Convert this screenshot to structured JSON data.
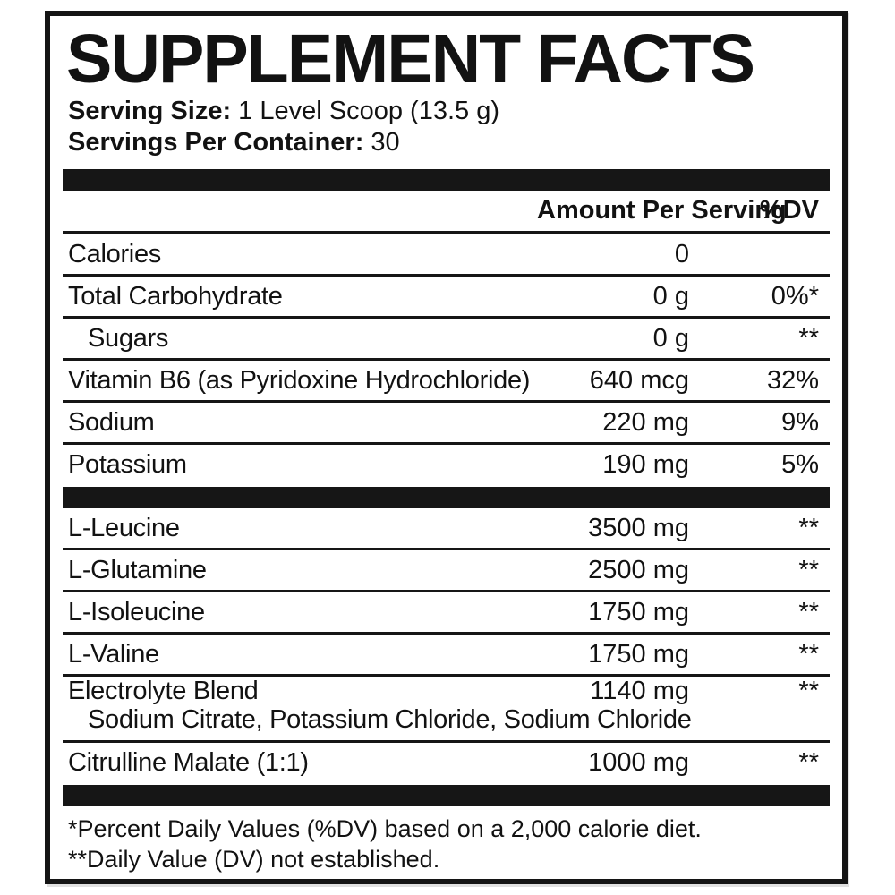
{
  "label": {
    "title": "SUPPLEMENT FACTS",
    "serving_size_label": "Serving Size:",
    "serving_size_value": " 1 Level Scoop (13.5 g)",
    "servings_per_container_label": "Servings Per Container:",
    "servings_per_container_value": " 30",
    "columns": {
      "amount_header": "Amount Per Serving",
      "dv_header": "%DV"
    },
    "rows": [
      {
        "name": "Calories",
        "amount": "0",
        "dv": ""
      },
      {
        "name": "Total Carbohydrate",
        "amount": "0 g",
        "dv": "0%*"
      },
      {
        "name": "Sugars",
        "amount": "0 g",
        "dv": "**"
      },
      {
        "name": "Vitamin B6 (as Pyridoxine Hydrochloride)",
        "amount": "640 mcg",
        "dv": "32%"
      },
      {
        "name": "Sodium",
        "amount": "220 mg",
        "dv": "9%"
      },
      {
        "name": "Potassium",
        "amount": "190 mg",
        "dv": "5%"
      },
      {
        "name": "L-Leucine",
        "amount": "3500 mg",
        "dv": "**"
      },
      {
        "name": "L-Glutamine",
        "amount": "2500 mg",
        "dv": "**"
      },
      {
        "name": "L-Isoleucine",
        "amount": "1750 mg",
        "dv": "**"
      },
      {
        "name": "L-Valine",
        "amount": "1750 mg",
        "dv": "**"
      },
      {
        "name": "Electrolyte Blend",
        "amount": "1140 mg",
        "dv": "**",
        "subtext": "Sodium Citrate, Potassium Chloride, Sodium Chloride"
      },
      {
        "name": "Citrulline Malate (1:1)",
        "amount": "1000 mg",
        "dv": "**"
      }
    ],
    "footnotes": [
      "*Percent Daily Values (%DV) based on a 2,000 calorie diet.",
      "**Daily Value (DV) not established."
    ],
    "colors": {
      "ink": "#141414",
      "background": "#ffffff"
    }
  }
}
